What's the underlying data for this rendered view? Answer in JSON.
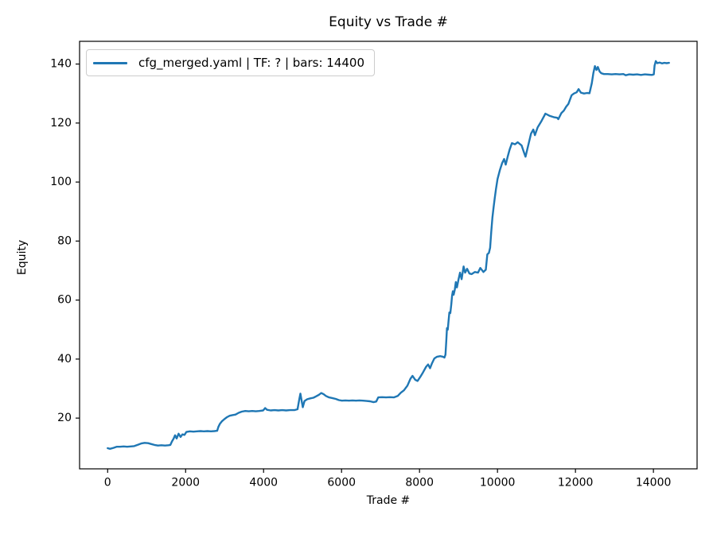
{
  "chart_data": {
    "type": "line",
    "title": "Equity vs Trade #",
    "xlabel": "Trade #",
    "ylabel": "Equity",
    "grid": false,
    "legend_position": "upper left",
    "background": "#ffffff",
    "spine_color": "#000000",
    "legend_border_color": "#cccccc",
    "xlim": [
      -720,
      15120
    ],
    "ylim": [
      2.8,
      147.7
    ],
    "xticks": [
      0,
      2000,
      4000,
      6000,
      8000,
      10000,
      12000,
      14000
    ],
    "yticks": [
      20,
      40,
      60,
      80,
      100,
      120,
      140
    ],
    "series": [
      {
        "name": "cfg_merged.yaml | TF: ? | bars: 14400",
        "color": "#1f77b4",
        "points": [
          [
            0,
            9.8
          ],
          [
            60,
            9.6
          ],
          [
            150,
            9.9
          ],
          [
            230,
            10.3
          ],
          [
            320,
            10.3
          ],
          [
            410,
            10.4
          ],
          [
            500,
            10.3
          ],
          [
            590,
            10.4
          ],
          [
            680,
            10.5
          ],
          [
            780,
            11.0
          ],
          [
            860,
            11.4
          ],
          [
            950,
            11.6
          ],
          [
            1040,
            11.5
          ],
          [
            1120,
            11.2
          ],
          [
            1200,
            10.9
          ],
          [
            1290,
            10.7
          ],
          [
            1380,
            10.8
          ],
          [
            1470,
            10.7
          ],
          [
            1560,
            10.8
          ],
          [
            1610,
            10.9
          ],
          [
            1650,
            12.1
          ],
          [
            1690,
            13.0
          ],
          [
            1730,
            14.2
          ],
          [
            1770,
            13.1
          ],
          [
            1820,
            14.7
          ],
          [
            1870,
            13.6
          ],
          [
            1920,
            14.5
          ],
          [
            1970,
            14.3
          ],
          [
            2020,
            15.3
          ],
          [
            2110,
            15.5
          ],
          [
            2200,
            15.4
          ],
          [
            2290,
            15.5
          ],
          [
            2380,
            15.6
          ],
          [
            2470,
            15.5
          ],
          [
            2560,
            15.6
          ],
          [
            2650,
            15.5
          ],
          [
            2740,
            15.6
          ],
          [
            2810,
            15.7
          ],
          [
            2840,
            17.0
          ],
          [
            2880,
            18.1
          ],
          [
            2930,
            18.9
          ],
          [
            2990,
            19.6
          ],
          [
            3060,
            20.3
          ],
          [
            3130,
            20.8
          ],
          [
            3200,
            21.0
          ],
          [
            3280,
            21.2
          ],
          [
            3360,
            21.8
          ],
          [
            3440,
            22.2
          ],
          [
            3530,
            22.4
          ],
          [
            3620,
            22.3
          ],
          [
            3710,
            22.4
          ],
          [
            3800,
            22.3
          ],
          [
            3890,
            22.4
          ],
          [
            3990,
            22.6
          ],
          [
            4040,
            23.4
          ],
          [
            4090,
            22.8
          ],
          [
            4180,
            22.6
          ],
          [
            4280,
            22.7
          ],
          [
            4380,
            22.6
          ],
          [
            4480,
            22.7
          ],
          [
            4580,
            22.6
          ],
          [
            4680,
            22.7
          ],
          [
            4790,
            22.7
          ],
          [
            4870,
            23.0
          ],
          [
            4915,
            26.4
          ],
          [
            4945,
            28.3
          ],
          [
            4975,
            26.0
          ],
          [
            5005,
            23.7
          ],
          [
            5050,
            25.8
          ],
          [
            5120,
            26.4
          ],
          [
            5200,
            26.7
          ],
          [
            5280,
            26.9
          ],
          [
            5350,
            27.4
          ],
          [
            5420,
            27.9
          ],
          [
            5480,
            28.5
          ],
          [
            5540,
            28.1
          ],
          [
            5600,
            27.5
          ],
          [
            5680,
            27.0
          ],
          [
            5760,
            26.8
          ],
          [
            5850,
            26.5
          ],
          [
            5930,
            26.1
          ],
          [
            6010,
            25.9
          ],
          [
            6100,
            26.0
          ],
          [
            6190,
            25.9
          ],
          [
            6280,
            26.0
          ],
          [
            6370,
            25.9
          ],
          [
            6460,
            26.0
          ],
          [
            6550,
            25.9
          ],
          [
            6640,
            25.8
          ],
          [
            6730,
            25.7
          ],
          [
            6820,
            25.4
          ],
          [
            6890,
            25.6
          ],
          [
            6940,
            27.0
          ],
          [
            7040,
            27.1
          ],
          [
            7140,
            27.0
          ],
          [
            7240,
            27.1
          ],
          [
            7340,
            27.0
          ],
          [
            7440,
            27.5
          ],
          [
            7520,
            28.6
          ],
          [
            7600,
            29.4
          ],
          [
            7690,
            31.0
          ],
          [
            7770,
            33.4
          ],
          [
            7820,
            34.3
          ],
          [
            7890,
            33.0
          ],
          [
            7950,
            32.6
          ],
          [
            8020,
            34.0
          ],
          [
            8090,
            35.5
          ],
          [
            8170,
            37.4
          ],
          [
            8220,
            38.2
          ],
          [
            8270,
            36.9
          ],
          [
            8320,
            38.6
          ],
          [
            8380,
            40.2
          ],
          [
            8450,
            40.8
          ],
          [
            8530,
            41.0
          ],
          [
            8600,
            40.8
          ],
          [
            8640,
            40.5
          ],
          [
            8665,
            41.5
          ],
          [
            8685,
            46.0
          ],
          [
            8705,
            50.5
          ],
          [
            8725,
            50.0
          ],
          [
            8745,
            53.0
          ],
          [
            8765,
            55.8
          ],
          [
            8790,
            55.6
          ],
          [
            8815,
            58.5
          ],
          [
            8835,
            61.5
          ],
          [
            8855,
            63.0
          ],
          [
            8875,
            61.8
          ],
          [
            8905,
            63.5
          ],
          [
            8930,
            66.1
          ],
          [
            8960,
            64.3
          ],
          [
            9000,
            67.0
          ],
          [
            9040,
            69.3
          ],
          [
            9080,
            67.1
          ],
          [
            9130,
            71.4
          ],
          [
            9170,
            69.3
          ],
          [
            9220,
            70.6
          ],
          [
            9280,
            69.0
          ],
          [
            9340,
            68.8
          ],
          [
            9420,
            69.5
          ],
          [
            9500,
            69.3
          ],
          [
            9560,
            70.9
          ],
          [
            9640,
            69.5
          ],
          [
            9700,
            70.3
          ],
          [
            9740,
            75.5
          ],
          [
            9780,
            76.0
          ],
          [
            9810,
            77.7
          ],
          [
            9840,
            83.0
          ],
          [
            9870,
            88.0
          ],
          [
            9900,
            91.5
          ],
          [
            9930,
            94.5
          ],
          [
            9960,
            97.5
          ],
          [
            10000,
            101.0
          ],
          [
            10060,
            104.0
          ],
          [
            10120,
            106.5
          ],
          [
            10170,
            107.8
          ],
          [
            10210,
            105.9
          ],
          [
            10260,
            108.5
          ],
          [
            10310,
            111.0
          ],
          [
            10370,
            113.2
          ],
          [
            10450,
            112.8
          ],
          [
            10520,
            113.5
          ],
          [
            10620,
            112.4
          ],
          [
            10680,
            110.0
          ],
          [
            10720,
            108.6
          ],
          [
            10780,
            112.0
          ],
          [
            10860,
            116.4
          ],
          [
            10920,
            117.8
          ],
          [
            10960,
            115.9
          ],
          [
            11030,
            118.5
          ],
          [
            11130,
            120.7
          ],
          [
            11230,
            123.2
          ],
          [
            11330,
            122.5
          ],
          [
            11440,
            122.0
          ],
          [
            11530,
            121.8
          ],
          [
            11560,
            121.3
          ],
          [
            11640,
            123.4
          ],
          [
            11700,
            124.2
          ],
          [
            11760,
            125.5
          ],
          [
            11820,
            126.5
          ],
          [
            11900,
            129.4
          ],
          [
            11960,
            130.0
          ],
          [
            12030,
            130.4
          ],
          [
            12080,
            131.5
          ],
          [
            12140,
            130.3
          ],
          [
            12220,
            130.0
          ],
          [
            12300,
            130.2
          ],
          [
            12360,
            130.1
          ],
          [
            12420,
            133.5
          ],
          [
            12460,
            137.0
          ],
          [
            12500,
            139.3
          ],
          [
            12540,
            138.0
          ],
          [
            12575,
            139.0
          ],
          [
            12620,
            137.5
          ],
          [
            12660,
            136.9
          ],
          [
            12730,
            136.6
          ],
          [
            12830,
            136.6
          ],
          [
            12930,
            136.5
          ],
          [
            13030,
            136.6
          ],
          [
            13130,
            136.5
          ],
          [
            13230,
            136.6
          ],
          [
            13290,
            136.2
          ],
          [
            13380,
            136.5
          ],
          [
            13480,
            136.4
          ],
          [
            13580,
            136.5
          ],
          [
            13680,
            136.3
          ],
          [
            13780,
            136.5
          ],
          [
            13880,
            136.4
          ],
          [
            13960,
            136.3
          ],
          [
            14010,
            136.5
          ],
          [
            14030,
            139.5
          ],
          [
            14060,
            141.0
          ],
          [
            14100,
            140.3
          ],
          [
            14160,
            140.5
          ],
          [
            14220,
            140.2
          ],
          [
            14280,
            140.4
          ],
          [
            14340,
            140.3
          ],
          [
            14400,
            140.4
          ]
        ]
      }
    ]
  }
}
